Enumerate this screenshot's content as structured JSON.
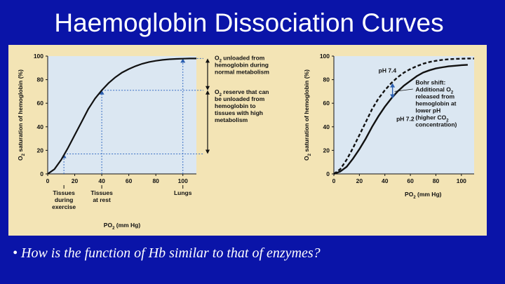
{
  "slide": {
    "title": "Haemoglobin Dissociation Curves",
    "bullet": "•",
    "question": "How is the function of Hb similar to that of enzymes?"
  },
  "colors": {
    "background": "#0a14a8",
    "figure_bg": "#f3e4b5",
    "plot_bg": "#dbe7f2",
    "curve": "#111111",
    "arrow": "#2b5fb0",
    "dashed_guides": "#3a6fc4"
  },
  "chart_data": [
    {
      "type": "line",
      "title": "",
      "xlabel": "PO2 (mm Hg)",
      "ylabel": "O2 saturation of hemoglobin (%)",
      "xlim": [
        0,
        110
      ],
      "ylim": [
        0,
        100
      ],
      "x_ticks": [
        "0",
        "20",
        "40",
        "60",
        "80",
        "100"
      ],
      "y_ticks": [
        "0",
        "20",
        "40",
        "60",
        "80",
        "100"
      ],
      "series": [
        {
          "x": [
            0,
            5,
            10,
            15,
            20,
            25,
            30,
            35,
            40,
            45,
            50,
            55,
            60,
            65,
            70,
            75,
            80,
            85,
            90,
            95,
            100,
            105,
            110
          ],
          "y": [
            0,
            4,
            12,
            22,
            33,
            44,
            55,
            64,
            71,
            77,
            82,
            86,
            89,
            91.5,
            93.5,
            95,
            96,
            96.8,
            97.3,
            97.6,
            97.8,
            98,
            98
          ]
        }
      ],
      "guides": [
        {
          "x": 12,
          "y": 17
        },
        {
          "x": 40,
          "y": 71
        },
        {
          "x": 100,
          "y": 98
        }
      ],
      "x_annotations": [
        {
          "x": 12,
          "lines": [
            "Tissues",
            "during",
            "exercise"
          ]
        },
        {
          "x": 40,
          "lines": [
            "Tissues",
            "at rest"
          ]
        },
        {
          "x": 100,
          "lines": [
            "Lungs"
          ]
        }
      ],
      "side_annotations": [
        {
          "y_from": 98,
          "y_to": 71,
          "lines": [
            "O2 unloaded from",
            "hemoglobin during",
            "normal metabolism"
          ]
        },
        {
          "y_from": 71,
          "y_to": 17,
          "lines": [
            "O2 reserve that can",
            "be unloaded from",
            "hemoglobin to",
            "tissues with high",
            "metabolism"
          ]
        }
      ]
    },
    {
      "type": "line",
      "title": "",
      "xlabel": "PO2 (mm Hg)",
      "ylabel": "O2 saturation of hemoglobin (%)",
      "xlim": [
        0,
        110
      ],
      "ylim": [
        0,
        100
      ],
      "x_ticks": [
        "0",
        "20",
        "40",
        "60",
        "80",
        "100"
      ],
      "y_ticks": [
        "0",
        "20",
        "40",
        "60",
        "80",
        "100"
      ],
      "series": [
        {
          "name": "pH 7.4",
          "style": "dashed",
          "x": [
            0,
            5,
            10,
            15,
            20,
            25,
            30,
            35,
            40,
            45,
            50,
            55,
            60,
            65,
            70,
            75,
            80,
            85,
            90,
            95,
            100,
            105,
            110
          ],
          "y": [
            0,
            4,
            12,
            22,
            33,
            44,
            55,
            64,
            71,
            77,
            82,
            86,
            89,
            91.5,
            93.5,
            95,
            96,
            96.8,
            97.3,
            97.6,
            97.8,
            98,
            98
          ]
        },
        {
          "name": "pH 7.2",
          "style": "solid",
          "x": [
            0,
            5,
            10,
            15,
            20,
            25,
            30,
            35,
            40,
            45,
            50,
            55,
            60,
            65,
            70,
            75,
            80,
            85,
            90,
            95,
            100,
            105
          ],
          "y": [
            0,
            2,
            6,
            13,
            21,
            30,
            40,
            49,
            57,
            64,
            70,
            75,
            79,
            83,
            86,
            88,
            89.5,
            90.5,
            91.3,
            91.8,
            92.3,
            92.6
          ]
        }
      ],
      "shift_arrow": {
        "x": 46,
        "y_from": 64,
        "y_to": 77
      },
      "annotation_lines": [
        "Bohr shift:",
        "Additional O2",
        "released from",
        "hemoglobin at",
        "lower pH",
        "(higher CO2",
        "concentration)"
      ]
    }
  ]
}
